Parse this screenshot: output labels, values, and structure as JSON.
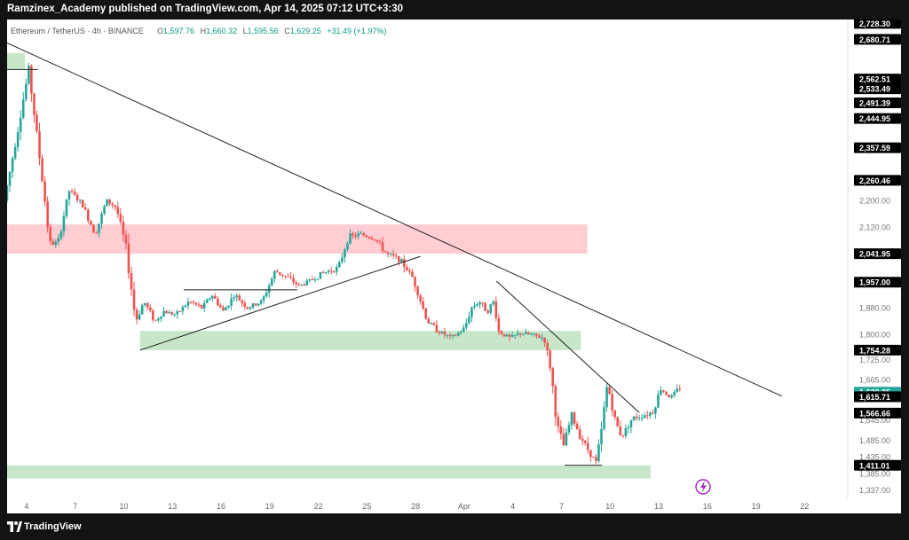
{
  "header": {
    "published_line": "Ramzinex_Academy published on TradingView.com, Apr 14, 2025 07:12 UTC+3:30"
  },
  "legend": {
    "symbol": "Ethereum / TetherUS · 4h · BINANCE",
    "open_label": "O",
    "open": "1,597.76",
    "high_label": "H",
    "high": "1,660.32",
    "low_label": "L",
    "low": "1,595.56",
    "close_label": "C",
    "close": "1,629.25",
    "change": "+31.49 (+1.97%)"
  },
  "footer": {
    "brand": "TradingView"
  },
  "colors": {
    "bull": "#26a69a",
    "bear": "#ef5350",
    "demand_zone": "#c8e6c9",
    "supply_zone": "#ffcdd2",
    "trendline": "#222222",
    "label_bg": "#000000",
    "price_tag": "#26a69a",
    "lightning": "#9c27b0"
  },
  "icons": {
    "lightning": "lightning-icon",
    "logo": "tradingview-logo-icon"
  },
  "chart_data": {
    "type": "candlestick",
    "symbol": "ETHUSDT",
    "timeframe": "4h",
    "exchange": "BINANCE",
    "ylim": [
      1310,
      2740
    ],
    "x_tick_labels": [
      {
        "day": 4,
        "label": "4"
      },
      {
        "day": 7,
        "label": "7"
      },
      {
        "day": 10,
        "label": "10"
      },
      {
        "day": 13,
        "label": "13"
      },
      {
        "day": 16,
        "label": "16"
      },
      {
        "day": 19,
        "label": "19"
      },
      {
        "day": 22,
        "label": "22"
      },
      {
        "day": 25,
        "label": "25"
      },
      {
        "day": 28,
        "label": "28"
      },
      {
        "day": 31,
        "label": "Apr"
      },
      {
        "day": 34,
        "label": "4"
      },
      {
        "day": 37,
        "label": "7"
      },
      {
        "day": 40,
        "label": "10"
      },
      {
        "day": 43,
        "label": "13"
      },
      {
        "day": 46,
        "label": "16"
      },
      {
        "day": 49,
        "label": "19"
      },
      {
        "day": 52,
        "label": "22"
      }
    ],
    "x_range_days": [
      2.8,
      54.5
    ],
    "y_axis_labels": [
      {
        "value": 2200,
        "label": "2,200.00"
      },
      {
        "value": 2120,
        "label": "2,120.00"
      },
      {
        "value": 1880,
        "label": "1,880.00"
      },
      {
        "value": 1800,
        "label": "1,800.00"
      },
      {
        "value": 1725,
        "label": "1,725.00"
      },
      {
        "value": 1665,
        "label": "1,665.00"
      },
      {
        "value": 1545,
        "label": "1,545.00"
      },
      {
        "value": 1485,
        "label": "1,485.00"
      },
      {
        "value": 1435,
        "label": "1,435.00"
      },
      {
        "value": 1385,
        "label": "1,385.00"
      },
      {
        "value": 1337,
        "label": "1,337.00"
      }
    ],
    "price_labels": [
      {
        "value": 2728.3,
        "label": "2,728.30"
      },
      {
        "value": 2680.71,
        "label": "2,680.71"
      },
      {
        "value": 2562.51,
        "label": "2,562.51"
      },
      {
        "value": 2533.49,
        "label": "2,533.49"
      },
      {
        "value": 2491.39,
        "label": "2,491.39"
      },
      {
        "value": 2444.95,
        "label": "2,444.95"
      },
      {
        "value": 2357.59,
        "label": "2,357.59"
      },
      {
        "value": 2260.46,
        "label": "2,260.46"
      },
      {
        "value": 2041.95,
        "label": "2,041.95"
      },
      {
        "value": 1957.0,
        "label": "1,957.00"
      },
      {
        "value": 1754.28,
        "label": "1,754.28"
      },
      {
        "value": 1615.71,
        "label": "1,615.71"
      },
      {
        "value": 1566.66,
        "label": "1,566.66"
      },
      {
        "value": 1411.01,
        "label": "1,411.01"
      }
    ],
    "current_price": {
      "value": 1629.25,
      "label": "1,629.25"
    },
    "zones": [
      {
        "type": "demand",
        "day_start": 2.8,
        "day_end": 3.9,
        "price_low": 2590,
        "price_high": 2640
      },
      {
        "type": "supply",
        "day_start": 2.8,
        "day_end": 38.6,
        "price_low": 2041.95,
        "price_high": 2129
      },
      {
        "type": "demand",
        "day_start": 11.0,
        "day_end": 38.2,
        "price_low": 1754.28,
        "price_high": 1812
      },
      {
        "type": "demand",
        "day_start": 2.8,
        "day_end": 42.5,
        "price_low": 1372,
        "price_high": 1411.01
      }
    ],
    "trendlines": [
      {
        "d1": 2.8,
        "p1": 2670,
        "d2": 50.6,
        "p2": 1617
      },
      {
        "d1": 11.0,
        "p1": 1754.28,
        "d2": 28.3,
        "p2": 2034
      },
      {
        "d1": 33.0,
        "p1": 1960,
        "d2": 41.8,
        "p2": 1568
      },
      {
        "d1": 2.8,
        "p1": 2591,
        "d2": 4.7,
        "p2": 2591
      },
      {
        "d1": 13.7,
        "p1": 1934,
        "d2": 20.7,
        "p2": 1934
      },
      {
        "d1": 37.2,
        "p1": 1411.01,
        "d2": 39.5,
        "p2": 1411.01
      }
    ],
    "path": [
      [
        2.8,
        2200
      ],
      [
        3.5,
        2380
      ],
      [
        4.3,
        2591
      ],
      [
        5.3,
        2200
      ],
      [
        5.6,
        2070
      ],
      [
        6.1,
        2075
      ],
      [
        6.8,
        2230
      ],
      [
        7.6,
        2190
      ],
      [
        8.4,
        2100
      ],
      [
        9.1,
        2200
      ],
      [
        9.7,
        2180
      ],
      [
        10.3,
        2060
      ],
      [
        10.9,
        1840
      ],
      [
        11.4,
        1900
      ],
      [
        12.1,
        1840
      ],
      [
        12.6,
        1870
      ],
      [
        13.4,
        1860
      ],
      [
        14.2,
        1900
      ],
      [
        15.0,
        1880
      ],
      [
        15.6,
        1920
      ],
      [
        16.3,
        1870
      ],
      [
        17.0,
        1920
      ],
      [
        17.8,
        1880
      ],
      [
        18.7,
        1900
      ],
      [
        19.5,
        1990
      ],
      [
        20.3,
        1970
      ],
      [
        21.0,
        1945
      ],
      [
        21.6,
        1960
      ],
      [
        22.5,
        1985
      ],
      [
        23.4,
        2000
      ],
      [
        24.0,
        2090
      ],
      [
        24.8,
        2100
      ],
      [
        25.7,
        2085
      ],
      [
        26.4,
        2040
      ],
      [
        27.2,
        2025
      ],
      [
        28.0,
        1970
      ],
      [
        28.9,
        1840
      ],
      [
        29.6,
        1810
      ],
      [
        30.4,
        1790
      ],
      [
        31.2,
        1820
      ],
      [
        31.6,
        1880
      ],
      [
        32.1,
        1900
      ],
      [
        32.6,
        1870
      ],
      [
        33.0,
        1900
      ],
      [
        33.3,
        1810
      ],
      [
        34.0,
        1790
      ],
      [
        34.6,
        1805
      ],
      [
        35.3,
        1800
      ],
      [
        36.1,
        1790
      ],
      [
        36.5,
        1700
      ],
      [
        36.9,
        1530
      ],
      [
        37.3,
        1470
      ],
      [
        37.8,
        1560
      ],
      [
        38.3,
        1500
      ],
      [
        38.9,
        1450
      ],
      [
        39.3,
        1420
      ],
      [
        39.6,
        1500
      ],
      [
        40.0,
        1655
      ],
      [
        40.5,
        1540
      ],
      [
        40.9,
        1495
      ],
      [
        41.5,
        1550
      ],
      [
        42.2,
        1560
      ],
      [
        42.8,
        1570
      ],
      [
        43.3,
        1640
      ],
      [
        43.9,
        1612
      ],
      [
        44.4,
        1640
      ]
    ]
  }
}
